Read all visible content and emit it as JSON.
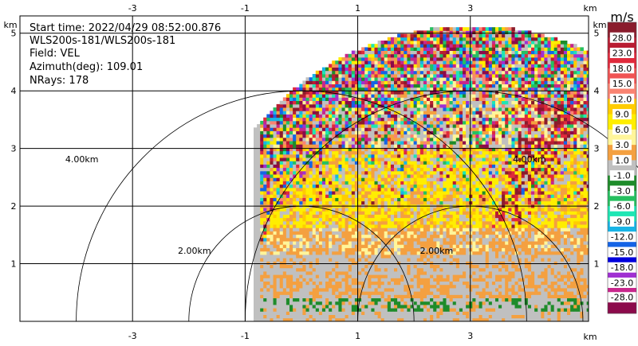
{
  "chart_data": {
    "type": "heatmap",
    "title": "",
    "info": [
      "Start time: 2022/04/29 08:52:00.876",
      "WLS200s-181/WLS200s-181",
      "Field: VEL",
      "Azimuth(deg): 109.01",
      "NRays: 178"
    ],
    "axis_unit": "km",
    "xlim": [
      -5,
      5.1
    ],
    "ylim": [
      0,
      5.3
    ],
    "x_ticks": [
      "-3",
      "-1",
      "1",
      "3"
    ],
    "x_tick_values": [
      -3,
      -1,
      1,
      3
    ],
    "y_ticks": [
      "1",
      "2",
      "3",
      "4",
      "5"
    ],
    "y_tick_values": [
      1,
      2,
      3,
      4,
      5
    ],
    "grid": true,
    "range_rings": [
      {
        "label": "2.00km",
        "radius_km": 2,
        "center": [
          0,
          0
        ]
      },
      {
        "label": "4.00km",
        "radius_km": 4,
        "center": [
          0,
          0
        ]
      },
      {
        "label": "2.00km",
        "radius_km": 2,
        "center": [
          3,
          0
        ]
      },
      {
        "label": "4.00km",
        "radius_km": 4,
        "center": [
          3,
          0
        ]
      }
    ],
    "sector": {
      "origin": [
        3,
        0
      ],
      "x_min": -0.85,
      "radius_km": 5.1
    },
    "colorbar": {
      "unit": "m/s",
      "labels": [
        "28.0",
        "23.0",
        "18.0",
        "15.0",
        "12.0",
        "9.0",
        "6.0",
        "3.0",
        "1.0",
        "-1.0",
        "-3.0",
        "-6.0",
        "-9.0",
        "-12.0",
        "-15.0",
        "-18.0",
        "-23.0",
        "-28.0"
      ],
      "colors": [
        "#8a1c2c",
        "#b91d32",
        "#e02a3c",
        "#f05454",
        "#fa8472",
        "#ffcc00",
        "#ffee00",
        "#fff59a",
        "#f4a040",
        "#c0c0c0",
        "#1e8c2a",
        "#26c060",
        "#1ee6b4",
        "#18b4e6",
        "#1464e6",
        "#0000dd",
        "#a030d2",
        "#c8268c",
        "#8c0a4b"
      ]
    }
  }
}
